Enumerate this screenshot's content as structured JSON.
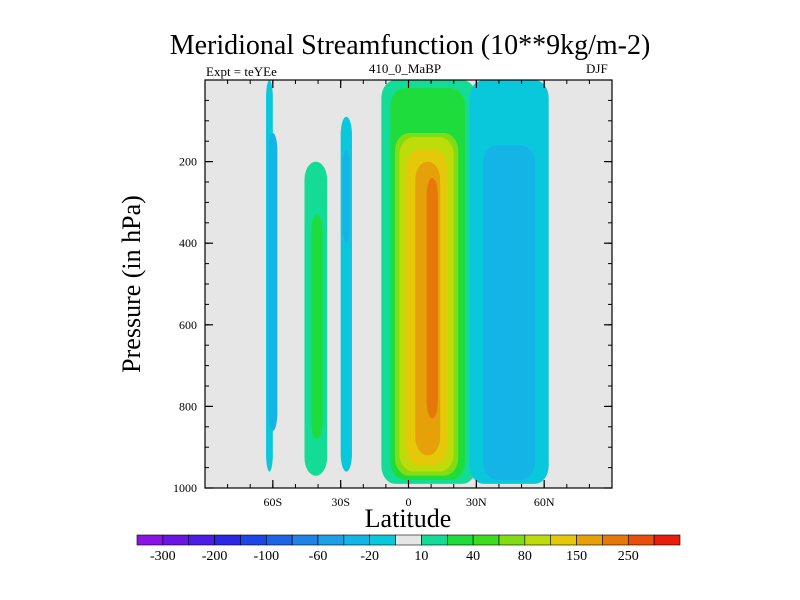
{
  "chart_data": {
    "type": "heatmap",
    "title": "Meridional Streamfunction (10**9kg/m-2)",
    "subtitle_left": "Expt = teYEe",
    "subtitle_center": "410_0_MaBP",
    "subtitle_right": "DJF",
    "xlabel": "Latitude",
    "ylabel": "Pressure (in hPa)",
    "xlim": [
      -90,
      90
    ],
    "ylim": [
      1000,
      0
    ],
    "x_ticks": [
      {
        "value": -60,
        "label": "60S"
      },
      {
        "value": -30,
        "label": "30S"
      },
      {
        "value": 0,
        "label": "0"
      },
      {
        "value": 30,
        "label": "30N"
      },
      {
        "value": 60,
        "label": "60N"
      }
    ],
    "y_ticks": [
      {
        "value": 200,
        "label": "200"
      },
      {
        "value": 400,
        "label": "400"
      },
      {
        "value": 600,
        "label": "600"
      },
      {
        "value": 800,
        "label": "800"
      },
      {
        "value": 1000,
        "label": "1000"
      }
    ],
    "colorbar": {
      "colors": [
        "#8a14e6",
        "#6a14e6",
        "#4a1ee6",
        "#2a28e6",
        "#1e46e6",
        "#1e64e6",
        "#1e82e6",
        "#1ea0e6",
        "#14b4e6",
        "#0ac8dc",
        "#e6e6e6",
        "#14dc96",
        "#1edc3c",
        "#3cdc1e",
        "#82dc14",
        "#bedc0a",
        "#e6c80a",
        "#e6a00a",
        "#e6780a",
        "#e6500a",
        "#e61e0a"
      ],
      "labels": [
        {
          "after_index": 0,
          "label": "-300"
        },
        {
          "after_index": 2,
          "label": "-200"
        },
        {
          "after_index": 4,
          "label": "-100"
        },
        {
          "after_index": 6,
          "label": "-60"
        },
        {
          "after_index": 8,
          "label": "-20"
        },
        {
          "after_index": 10,
          "label": "10"
        },
        {
          "after_index": 12,
          "label": "40"
        },
        {
          "after_index": 14,
          "label": "80"
        },
        {
          "after_index": 16,
          "label": "150"
        },
        {
          "after_index": 18,
          "label": "250"
        }
      ]
    },
    "regions": [
      {
        "level": -20,
        "color": "#0ac8dc",
        "lat": [
          -63,
          -60
        ],
        "p": [
          0,
          960
        ]
      },
      {
        "level": -60,
        "color": "#14b4e6",
        "lat": [
          -62,
          -58
        ],
        "p": [
          130,
          860
        ]
      },
      {
        "level": 10,
        "color": "#14dc96",
        "lat": [
          -46,
          -36
        ],
        "p": [
          200,
          970
        ]
      },
      {
        "level": 40,
        "color": "#1edc3c",
        "lat": [
          -43,
          -38
        ],
        "p": [
          330,
          880
        ]
      },
      {
        "level": -20,
        "color": "#0ac8dc",
        "lat": [
          -30,
          -25
        ],
        "p": [
          90,
          960
        ]
      },
      {
        "level": -60,
        "color": "#14b4e6",
        "lat": [
          -29,
          -26
        ],
        "p": [
          170,
          400
        ]
      },
      {
        "level": 10,
        "color": "#14dc96",
        "lat": [
          -12,
          30
        ],
        "p": [
          0,
          990
        ]
      },
      {
        "level": 40,
        "color": "#1edc3c",
        "lat": [
          -8,
          25
        ],
        "p": [
          20,
          980
        ]
      },
      {
        "level": 80,
        "color": "#82dc14",
        "lat": [
          -6,
          22
        ],
        "p": [
          130,
          970
        ]
      },
      {
        "level": 100,
        "color": "#bedc0a",
        "lat": [
          -4,
          20
        ],
        "p": [
          140,
          960
        ]
      },
      {
        "level": 150,
        "color": "#e6c80a",
        "lat": [
          -1,
          17
        ],
        "p": [
          170,
          945
        ]
      },
      {
        "level": 200,
        "color": "#e6a00a",
        "lat": [
          3,
          14
        ],
        "p": [
          200,
          920
        ]
      },
      {
        "level": 250,
        "color": "#e6780a",
        "lat": [
          8,
          13
        ],
        "p": [
          240,
          830
        ]
      },
      {
        "level": -20,
        "color": "#0ac8dc",
        "lat": [
          27,
          62
        ],
        "p": [
          0,
          990
        ]
      },
      {
        "level": -60,
        "color": "#14b4e6",
        "lat": [
          33,
          56
        ],
        "p": [
          160,
          980
        ]
      }
    ]
  }
}
